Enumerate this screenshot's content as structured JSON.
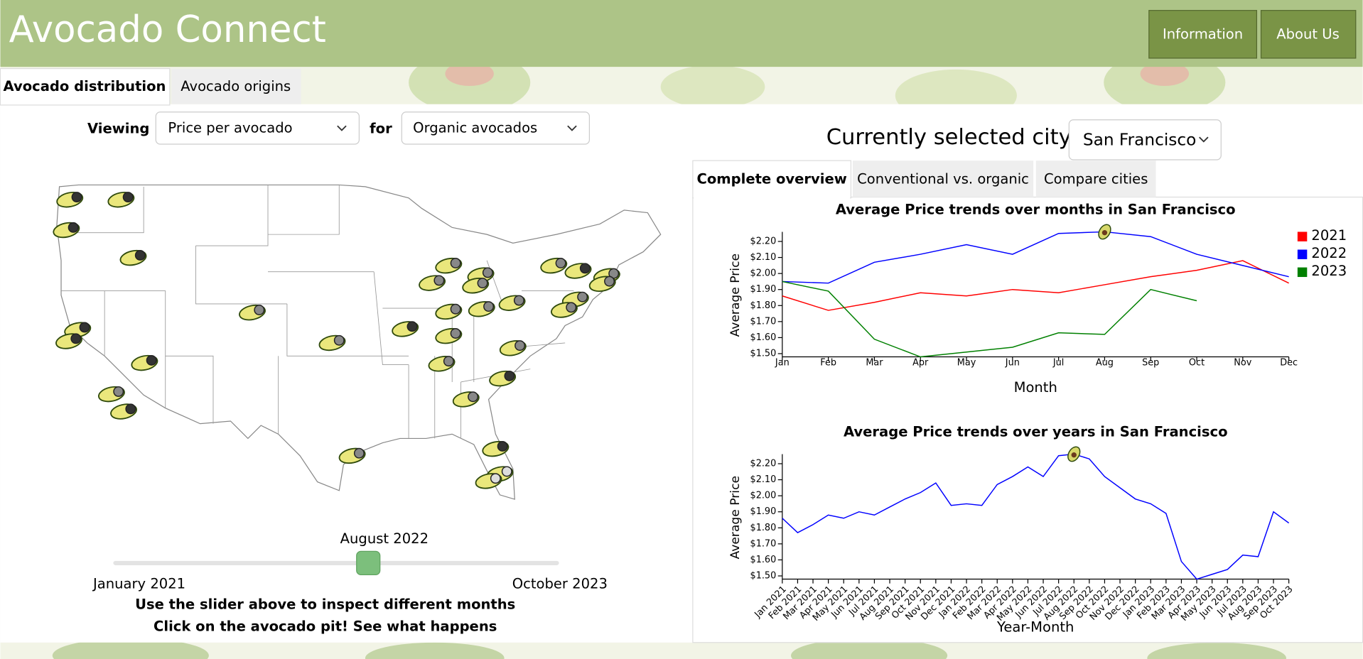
{
  "header": {
    "title": "Avocado Connect",
    "buttons": [
      "Information",
      "About Us"
    ]
  },
  "tabs": [
    "Avocado distribution",
    "Avocado origins"
  ],
  "controls": {
    "viewing_label": "Viewing",
    "viewing": "Price per avocado",
    "for_label": "for",
    "product": "Organic avocados"
  },
  "slider": {
    "current": "August 2022",
    "start": "January 2021",
    "end": "October 2023"
  },
  "instructions": [
    "Use the slider above to inspect different months",
    "Click on the avocado pit! See what happens"
  ],
  "city": {
    "label": "Currently selected city:",
    "value": "San Francisco"
  },
  "chart_tabs": [
    "Complete overview",
    "Conventional vs. organic",
    "Compare cities"
  ],
  "chart_data": [
    {
      "type": "line",
      "title": "Average Price trends over months in San Francisco",
      "x_label": "Month",
      "y_label": "Average Price",
      "categories": [
        "Jan",
        "Feb",
        "Mar",
        "Apr",
        "May",
        "Jun",
        "Jul",
        "Aug",
        "Sep",
        "Oct",
        "Nov",
        "Dec"
      ],
      "series": [
        {
          "name": "2021",
          "color": "#ff0000",
          "values": [
            1.86,
            1.77,
            1.82,
            1.88,
            1.86,
            1.9,
            1.88,
            1.93,
            1.98,
            2.02,
            2.08,
            1.94
          ]
        },
        {
          "name": "2022",
          "color": "#0000ff",
          "values": [
            1.95,
            1.94,
            2.07,
            2.12,
            2.18,
            2.12,
            2.25,
            2.26,
            2.23,
            2.12,
            2.05,
            1.98
          ]
        },
        {
          "name": "2023",
          "color": "#008000",
          "values": [
            1.95,
            1.89,
            1.59,
            1.48,
            1.51,
            1.54,
            1.63,
            1.62,
            1.9,
            1.83,
            null,
            null
          ]
        }
      ],
      "ylim": [
        1.48,
        2.26
      ],
      "yticks": [
        {
          "value": 1.5,
          "label": "$1.50"
        },
        {
          "value": 1.6,
          "label": "$1.60"
        },
        {
          "value": 1.7,
          "label": "$1.70"
        },
        {
          "value": 1.8,
          "label": "$1.80"
        },
        {
          "value": 1.9,
          "label": "$1.90"
        },
        {
          "value": 2.0,
          "label": "$2.00"
        },
        {
          "value": 2.1,
          "label": "$2.10"
        },
        {
          "value": 2.2,
          "label": "$2.20"
        }
      ],
      "legend": "right"
    },
    {
      "type": "line",
      "title": "Average Price trends over years in San Francisco",
      "x_label": "Year-Month",
      "y_label": "Average Price",
      "categories": [
        "Jan 2021",
        "Feb 2021",
        "Mar 2021",
        "Apr 2021",
        "May 2021",
        "Jun 2021",
        "Jul 2021",
        "Aug 2021",
        "Sep 2021",
        "Oct 2021",
        "Nov 2021",
        "Dec 2021",
        "Jan 2022",
        "Feb 2022",
        "Mar 2022",
        "Apr 2022",
        "May 2022",
        "Jun 2022",
        "Jul 2022",
        "Aug 2022",
        "Sep 2022",
        "Oct 2022",
        "Nov 2022",
        "Dec 2022",
        "Jan 2023",
        "Feb 2023",
        "Mar 2023",
        "Apr 2023",
        "May 2023",
        "Jun 2023",
        "Jul 2023",
        "Aug 2023",
        "Sep 2023",
        "Oct 2023"
      ],
      "color": "#0000ff",
      "values": [
        1.86,
        1.77,
        1.82,
        1.88,
        1.86,
        1.9,
        1.88,
        1.93,
        1.98,
        2.02,
        2.08,
        1.94,
        1.95,
        1.94,
        2.07,
        2.12,
        2.18,
        2.12,
        2.25,
        2.26,
        2.23,
        2.12,
        2.05,
        1.98,
        1.95,
        1.89,
        1.59,
        1.48,
        1.51,
        1.54,
        1.63,
        1.62,
        1.9,
        1.83
      ],
      "ylim": [
        1.48,
        2.26
      ],
      "yticks": [
        {
          "value": 1.5,
          "label": "$1.50"
        },
        {
          "value": 1.6,
          "label": "$1.60"
        },
        {
          "value": 1.7,
          "label": "$1.70"
        },
        {
          "value": 1.8,
          "label": "$1.80"
        },
        {
          "value": 1.9,
          "label": "$1.90"
        },
        {
          "value": 2.0,
          "label": "$2.00"
        },
        {
          "value": 2.1,
          "label": "$2.10"
        },
        {
          "value": 2.2,
          "label": "$2.20"
        }
      ]
    }
  ]
}
